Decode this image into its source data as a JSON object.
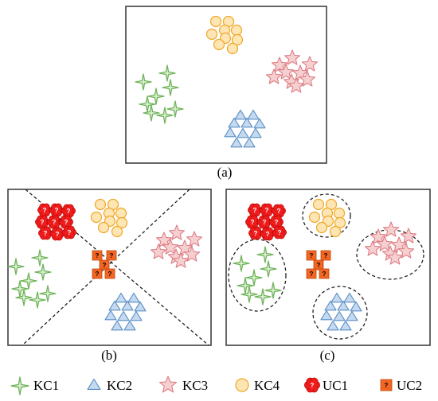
{
  "panels": [
    {
      "id": "a",
      "caption": "(a)"
    },
    {
      "id": "b",
      "caption": "(b)"
    },
    {
      "id": "c",
      "caption": "(c)"
    }
  ],
  "unknown_marker": "?",
  "legend": [
    {
      "key": "KC1",
      "label": "KC1",
      "shape": "four-point-star",
      "fill": "#d9efcf",
      "stroke": "#6fb35a"
    },
    {
      "key": "KC2",
      "label": "KC2",
      "shape": "triangle",
      "fill": "#c5d9ef",
      "stroke": "#5b8fc6"
    },
    {
      "key": "KC3",
      "label": "KC3",
      "shape": "five-point-star",
      "fill": "#f6cfd0",
      "stroke": "#de7f86"
    },
    {
      "key": "KC4",
      "label": "KC4",
      "shape": "circle",
      "fill": "#fde6b3",
      "stroke": "#f0a626"
    },
    {
      "key": "UC1",
      "label": "UC1",
      "shape": "flower",
      "fill": "#ee1c1c",
      "stroke": "#b30000"
    },
    {
      "key": "UC2",
      "label": "UC2",
      "shape": "square",
      "fill": "#f26522",
      "stroke": "#c04a10"
    }
  ]
}
